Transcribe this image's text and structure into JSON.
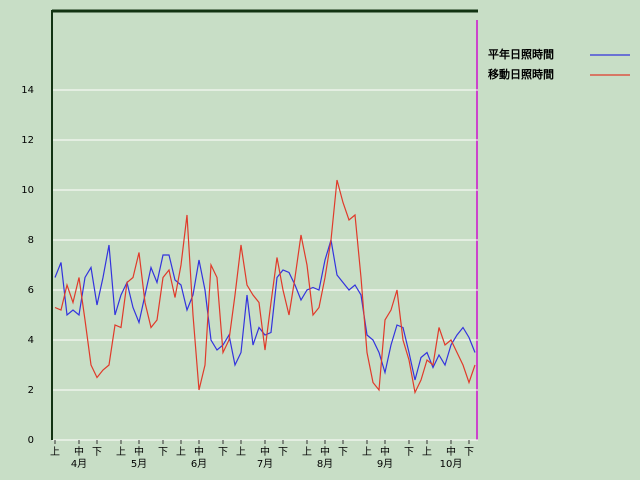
{
  "chart_data": {
    "type": "line",
    "categories": [
      "上",
      null,
      null,
      null,
      "中",
      null,
      null,
      "下",
      null,
      null,
      null,
      "上",
      null,
      null,
      "中",
      null,
      null,
      null,
      "下",
      null,
      null,
      "上",
      null,
      null,
      "中",
      null,
      null,
      null,
      "下",
      null,
      null,
      "上",
      null,
      null,
      null,
      "中",
      null,
      null,
      "下",
      null,
      null,
      null,
      "上",
      null,
      null,
      "中",
      null,
      null,
      "下",
      null,
      null,
      null,
      "上",
      null,
      null,
      "中",
      null,
      null,
      null,
      "下",
      null,
      null,
      "上",
      null,
      null,
      null,
      "中",
      null,
      null,
      "下",
      null
    ],
    "month_labels": [
      "4月",
      "5月",
      "6月",
      "7月",
      "8月",
      "9月",
      "10月"
    ],
    "series": [
      {
        "name": "平年日照時間",
        "color": "#3333dd",
        "values": [
          6.5,
          7.1,
          5.0,
          5.2,
          5.0,
          6.5,
          6.9,
          5.4,
          6.5,
          7.8,
          5.0,
          5.8,
          6.3,
          5.3,
          4.7,
          5.8,
          6.9,
          6.3,
          7.4,
          7.4,
          6.4,
          6.2,
          5.2,
          5.8,
          7.2,
          6.0,
          4.0,
          3.6,
          3.8,
          4.2,
          3.0,
          3.5,
          5.8,
          3.8,
          4.5,
          4.2,
          4.3,
          6.5,
          6.8,
          6.7,
          6.2,
          5.6,
          6.0,
          6.1,
          6.0,
          7.2,
          8.0,
          6.6,
          6.3,
          6.0,
          6.2,
          5.8,
          4.2,
          4.0,
          3.5,
          2.7,
          3.8,
          4.6,
          4.5,
          3.5,
          2.4,
          3.3,
          3.5,
          2.9,
          3.4,
          3.0,
          3.8,
          4.2,
          4.5,
          4.1,
          3.5
        ]
      },
      {
        "name": "移動日照時間",
        "color": "#e03a2a",
        "values": [
          5.3,
          5.2,
          6.2,
          5.5,
          6.5,
          4.8,
          3.0,
          2.5,
          2.8,
          3.0,
          4.6,
          4.5,
          6.3,
          6.5,
          7.5,
          5.5,
          4.5,
          4.8,
          6.5,
          6.8,
          5.7,
          7.0,
          9.0,
          5.0,
          2.0,
          3.0,
          7.0,
          6.5,
          3.5,
          4.0,
          5.8,
          7.8,
          6.2,
          5.8,
          5.5,
          3.6,
          5.5,
          7.3,
          6.0,
          5.0,
          6.5,
          8.2,
          7.0,
          5.0,
          5.3,
          6.5,
          8.0,
          10.4,
          9.5,
          8.8,
          9.0,
          6.5,
          3.5,
          2.3,
          2.0,
          4.8,
          5.2,
          6.0,
          4.0,
          3.2,
          1.9,
          2.4,
          3.2,
          3.0,
          4.5,
          3.8,
          4.0,
          3.5,
          3.0,
          2.3,
          3.0
        ]
      }
    ],
    "ylim": [
      0,
      17.2
    ],
    "yticks": [
      0,
      2,
      4,
      6,
      8,
      10,
      12,
      14
    ],
    "grid": true
  }
}
